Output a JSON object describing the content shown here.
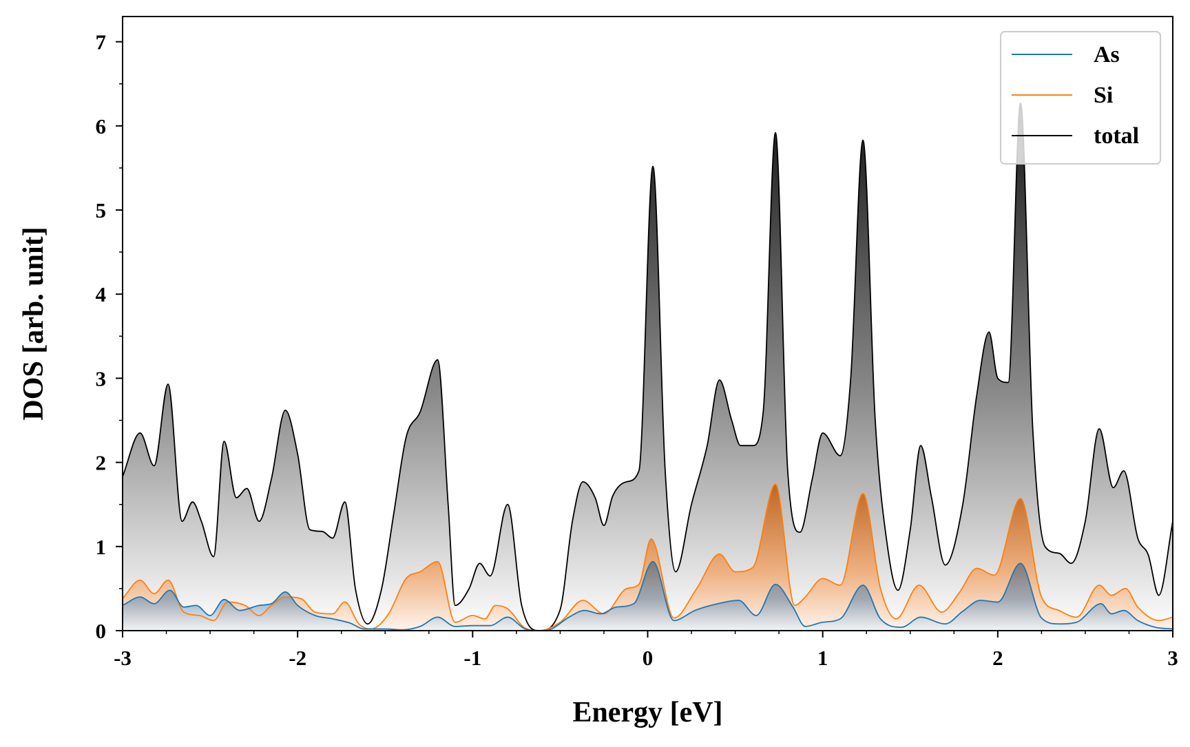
{
  "chart_data": {
    "type": "area",
    "xlabel": "Energy [eV]",
    "ylabel": "DOS [arb. unit]",
    "xlim": [
      -3,
      3
    ],
    "ylim": [
      0,
      7.3
    ],
    "xticks": [
      -3,
      -2,
      -1,
      0,
      1,
      2,
      3
    ],
    "yticks": [
      0,
      1,
      2,
      3,
      4,
      5,
      6,
      7
    ],
    "xtick_labels": [
      "-3",
      "-2",
      "-1",
      "0",
      "1",
      "2",
      "3"
    ],
    "ytick_labels": [
      "0",
      "1",
      "2",
      "3",
      "4",
      "5",
      "6",
      "7"
    ],
    "grid": false,
    "legend_position": "top-right",
    "series": [
      {
        "name": "As",
        "color": "#1f77b4",
        "fill": "gradient-blue",
        "x": [
          -3.0,
          -2.9,
          -2.82,
          -2.73,
          -2.65,
          -2.58,
          -2.5,
          -2.42,
          -2.33,
          -2.22,
          -2.15,
          -2.07,
          -2.0,
          -1.9,
          -1.8,
          -1.7,
          -1.62,
          -1.5,
          -1.4,
          -1.3,
          -1.2,
          -1.1,
          -1.0,
          -0.9,
          -0.8,
          -0.7,
          -0.62,
          -0.55,
          -0.45,
          -0.36,
          -0.27,
          -0.18,
          -0.08,
          0.03,
          0.15,
          0.27,
          0.4,
          0.52,
          0.62,
          0.73,
          0.83,
          0.9,
          1.0,
          1.1,
          1.23,
          1.33,
          1.45,
          1.56,
          1.7,
          1.8,
          1.9,
          2.0,
          2.13,
          2.25,
          2.35,
          2.45,
          2.59,
          2.65,
          2.72,
          2.8,
          2.9,
          3.0
        ],
        "values": [
          0.3,
          0.4,
          0.32,
          0.48,
          0.28,
          0.3,
          0.18,
          0.37,
          0.24,
          0.3,
          0.32,
          0.46,
          0.3,
          0.18,
          0.14,
          0.09,
          0.02,
          0.02,
          0.01,
          0.05,
          0.16,
          0.05,
          0.06,
          0.06,
          0.16,
          0.02,
          0.0,
          0.02,
          0.16,
          0.24,
          0.2,
          0.28,
          0.32,
          0.82,
          0.12,
          0.24,
          0.32,
          0.36,
          0.18,
          0.55,
          0.28,
          0.05,
          0.1,
          0.14,
          0.54,
          0.14,
          0.04,
          0.16,
          0.08,
          0.23,
          0.36,
          0.34,
          0.8,
          0.15,
          0.08,
          0.1,
          0.32,
          0.2,
          0.24,
          0.12,
          0.04,
          0.02
        ]
      },
      {
        "name": "Si",
        "color": "#ff7f0e",
        "fill": "gradient-orange",
        "x": [
          -3.0,
          -2.9,
          -2.82,
          -2.74,
          -2.65,
          -2.56,
          -2.48,
          -2.4,
          -2.3,
          -2.22,
          -2.15,
          -2.07,
          -1.98,
          -1.9,
          -1.8,
          -1.73,
          -1.65,
          -1.58,
          -1.48,
          -1.38,
          -1.3,
          -1.2,
          -1.1,
          -1.0,
          -0.93,
          -0.87,
          -0.8,
          -0.7,
          -0.62,
          -0.5,
          -0.37,
          -0.25,
          -0.12,
          -0.05,
          0.02,
          0.15,
          0.28,
          0.41,
          0.5,
          0.6,
          0.73,
          0.84,
          0.9,
          1.0,
          1.1,
          1.23,
          1.33,
          1.42,
          1.55,
          1.68,
          1.78,
          1.88,
          1.98,
          2.13,
          2.25,
          2.35,
          2.45,
          2.58,
          2.65,
          2.73,
          2.8,
          2.92,
          3.0
        ],
        "values": [
          0.38,
          0.6,
          0.44,
          0.6,
          0.22,
          0.18,
          0.12,
          0.34,
          0.3,
          0.18,
          0.3,
          0.4,
          0.38,
          0.22,
          0.2,
          0.34,
          0.08,
          0.02,
          0.2,
          0.62,
          0.7,
          0.82,
          0.1,
          0.18,
          0.14,
          0.3,
          0.26,
          0.03,
          0.0,
          0.1,
          0.36,
          0.2,
          0.5,
          0.55,
          1.09,
          0.15,
          0.5,
          0.91,
          0.7,
          0.75,
          1.74,
          0.3,
          0.4,
          0.62,
          0.54,
          1.63,
          0.5,
          0.14,
          0.54,
          0.22,
          0.45,
          0.74,
          0.66,
          1.57,
          0.4,
          0.24,
          0.16,
          0.54,
          0.42,
          0.5,
          0.28,
          0.12,
          0.16
        ]
      },
      {
        "name": "total",
        "color": "#000000",
        "fill": "gradient-gray",
        "x": [
          -3.0,
          -2.9,
          -2.82,
          -2.74,
          -2.66,
          -2.6,
          -2.55,
          -2.48,
          -2.42,
          -2.35,
          -2.29,
          -2.22,
          -2.15,
          -2.07,
          -2.0,
          -1.93,
          -1.86,
          -1.8,
          -1.73,
          -1.67,
          -1.6,
          -1.52,
          -1.45,
          -1.38,
          -1.3,
          -1.2,
          -1.14,
          -1.1,
          -1.02,
          -0.96,
          -0.9,
          -0.8,
          -0.72,
          -0.62,
          -0.5,
          -0.43,
          -0.37,
          -0.3,
          -0.25,
          -0.2,
          -0.12,
          -0.05,
          0.03,
          0.1,
          0.16,
          0.25,
          0.34,
          0.41,
          0.48,
          0.53,
          0.6,
          0.66,
          0.73,
          0.8,
          0.87,
          0.94,
          1.0,
          1.1,
          1.16,
          1.23,
          1.3,
          1.37,
          1.43,
          1.5,
          1.56,
          1.62,
          1.7,
          1.8,
          1.88,
          1.95,
          2.0,
          2.06,
          2.13,
          2.2,
          2.27,
          2.35,
          2.42,
          2.5,
          2.58,
          2.66,
          2.72,
          2.8,
          2.86,
          2.92,
          3.0
        ],
        "values": [
          1.83,
          2.35,
          1.96,
          2.93,
          1.3,
          1.53,
          1.3,
          0.88,
          2.25,
          1.58,
          1.69,
          1.3,
          1.8,
          2.62,
          2.1,
          1.2,
          1.18,
          1.1,
          1.53,
          0.5,
          0.08,
          0.5,
          1.4,
          2.3,
          2.6,
          3.22,
          1.5,
          0.3,
          0.5,
          0.8,
          0.65,
          1.5,
          0.3,
          0.0,
          0.25,
          1.3,
          1.77,
          1.58,
          1.25,
          1.6,
          1.77,
          1.9,
          5.52,
          1.9,
          0.7,
          1.5,
          2.2,
          2.98,
          2.5,
          2.2,
          2.2,
          2.6,
          5.92,
          1.9,
          1.17,
          1.8,
          2.35,
          2.08,
          3.0,
          5.83,
          2.5,
          1.0,
          0.48,
          1.2,
          2.2,
          1.6,
          0.78,
          1.5,
          2.8,
          3.55,
          3.0,
          2.95,
          6.27,
          2.4,
          1.0,
          0.92,
          0.8,
          1.3,
          2.4,
          1.7,
          1.9,
          1.1,
          0.9,
          0.42,
          1.3
        ]
      }
    ]
  }
}
